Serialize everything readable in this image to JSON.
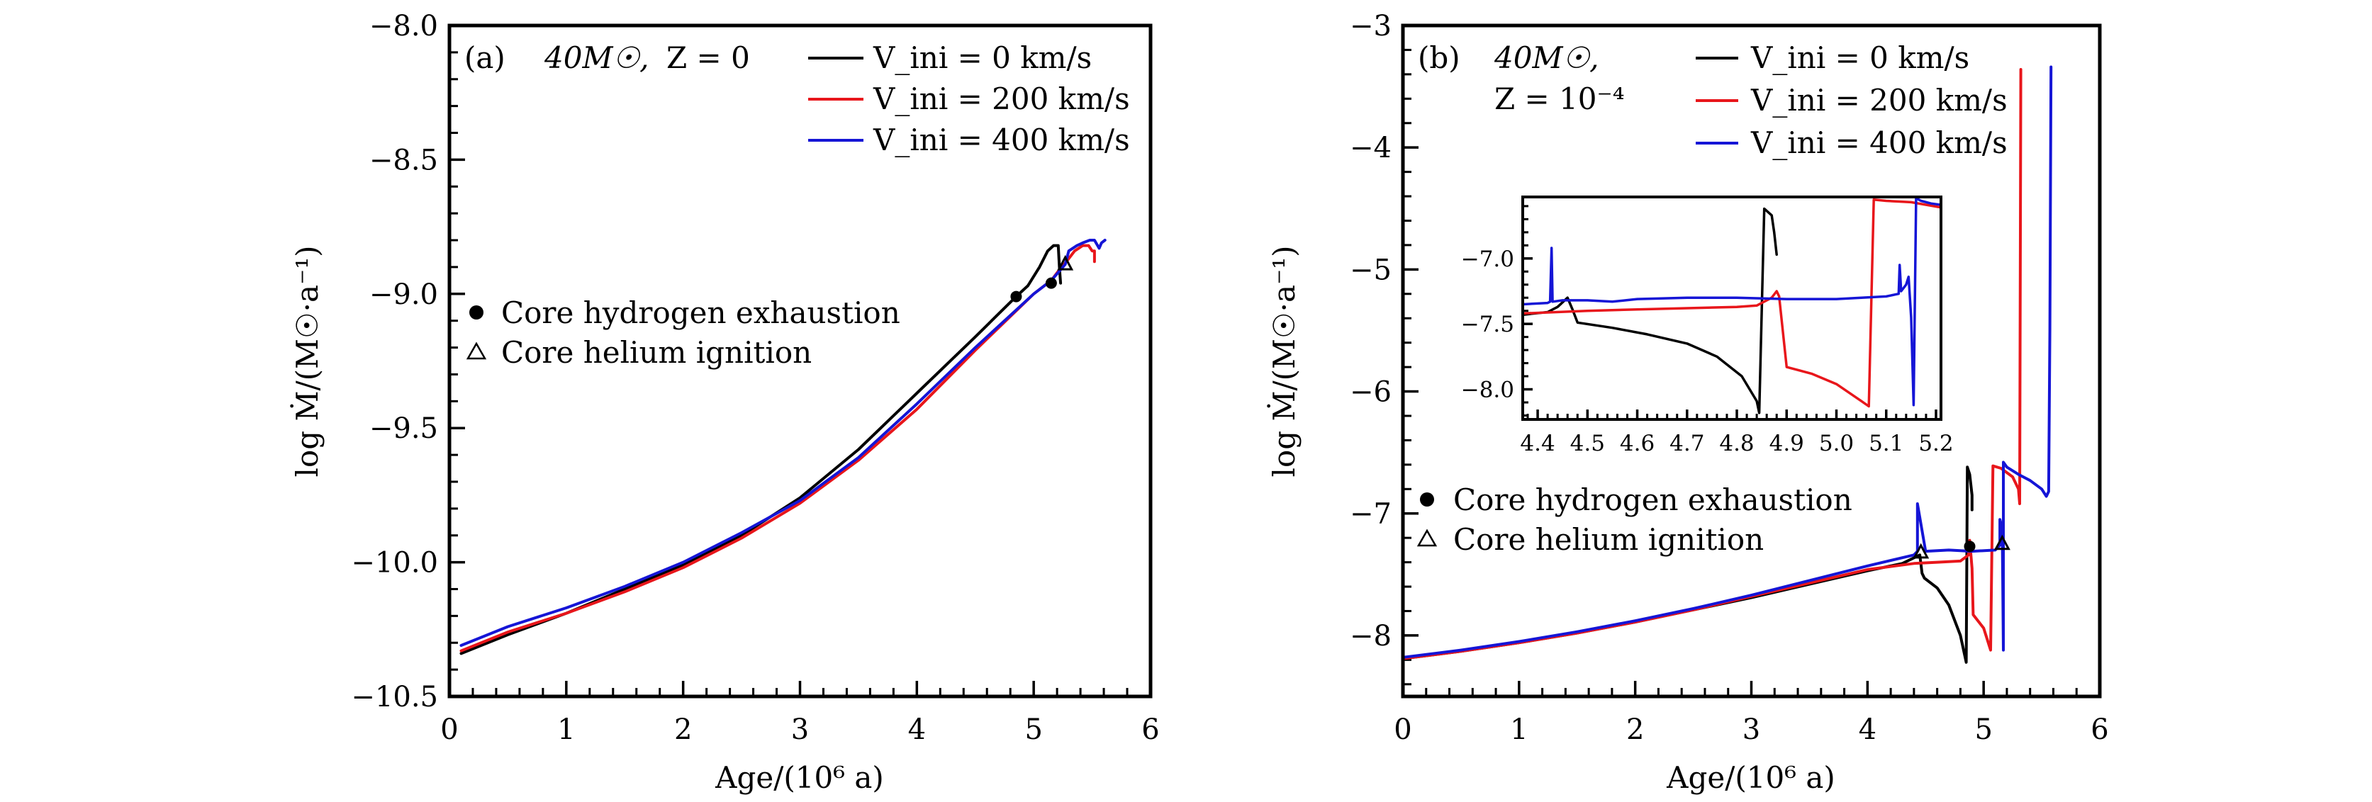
{
  "chart_data": [
    {
      "panel": "(a)",
      "type": "line",
      "annotation": {
        "label": "(a)",
        "mass": "40M☉,",
        "metallicity": "Z = 0"
      },
      "xlabel": "Age/(10⁶ a)",
      "ylabel": "log Ṁ/(M☉·a⁻¹)",
      "xlim": [
        0,
        6
      ],
      "ylim": [
        -10.5,
        -8.0
      ],
      "xticks": [
        0,
        1,
        2,
        3,
        4,
        5,
        6
      ],
      "xtick_labels": [
        "0",
        "1",
        "2",
        "3",
        "4",
        "5",
        "6"
      ],
      "yticks": [
        -10.5,
        -10.0,
        -9.5,
        -9.0,
        -8.5,
        -8.0
      ],
      "ytick_labels": [
        "−10.5",
        "−10.0",
        "−9.5",
        "−9.0",
        "−8.5",
        "−8.0"
      ],
      "x_minor_step": 0.2,
      "y_minor_step": 0.1,
      "legend": {
        "placement": "top-right"
      },
      "marker_legend": {
        "placement": "center-left",
        "items": [
          {
            "symbol": "filled-circle",
            "label": "Core hydrogen exhaustion"
          },
          {
            "symbol": "open-triangle",
            "label": "Core helium ignition"
          }
        ]
      },
      "series": [
        {
          "name": "V_ini = 0 km/s",
          "color": "#000000",
          "x": [
            0.1,
            0.5,
            1.0,
            1.5,
            2.0,
            2.5,
            3.0,
            3.5,
            4.0,
            4.5,
            4.85,
            4.95,
            5.05,
            5.12,
            5.17,
            5.21,
            5.22,
            5.23
          ],
          "y": [
            -10.34,
            -10.27,
            -10.19,
            -10.1,
            -10.01,
            -9.9,
            -9.76,
            -9.58,
            -9.37,
            -9.16,
            -9.01,
            -8.97,
            -8.9,
            -8.84,
            -8.82,
            -8.82,
            -8.9,
            -8.96
          ]
        },
        {
          "name": "V_ini = 200 km/s",
          "color": "#e8161b",
          "x": [
            0.1,
            0.5,
            1.0,
            1.5,
            2.0,
            2.5,
            3.0,
            3.5,
            4.0,
            4.5,
            5.0,
            5.15,
            5.22,
            5.28,
            5.35,
            5.42,
            5.47,
            5.5,
            5.52,
            5.52
          ],
          "y": [
            -10.33,
            -10.26,
            -10.19,
            -10.11,
            -10.02,
            -9.91,
            -9.78,
            -9.62,
            -9.43,
            -9.21,
            -9.0,
            -8.95,
            -8.91,
            -8.88,
            -8.84,
            -8.82,
            -8.82,
            -8.84,
            -8.84,
            -8.88
          ]
        },
        {
          "name": "V_ini = 400 km/s",
          "color": "#1515d6",
          "x": [
            0.1,
            0.5,
            1.0,
            1.5,
            2.0,
            2.5,
            3.0,
            3.5,
            4.0,
            4.5,
            5.0,
            5.15,
            5.27,
            5.3,
            5.37,
            5.42,
            5.48,
            5.52,
            5.56,
            5.58,
            5.61
          ],
          "y": [
            -10.31,
            -10.24,
            -10.17,
            -10.09,
            -10.0,
            -9.89,
            -9.77,
            -9.61,
            -9.41,
            -9.2,
            -9.0,
            -8.95,
            -8.89,
            -8.84,
            -8.82,
            -8.81,
            -8.8,
            -8.8,
            -8.83,
            -8.81,
            -8.8
          ]
        }
      ],
      "markers": [
        {
          "series": "V_ini = 0 km/s",
          "type": "filled-circle",
          "x": 4.85,
          "y": -9.01
        },
        {
          "series": "V_ini = 200 km/s",
          "type": "filled-circle",
          "x": 5.15,
          "y": -8.96
        },
        {
          "series": "V_ini = 400 km/s",
          "type": "open-triangle",
          "x": 5.27,
          "y": -8.89
        }
      ]
    },
    {
      "panel": "(b)",
      "type": "line",
      "annotation": {
        "label": "(b)",
        "mass": "40M☉,",
        "metallicity": "Z = 10⁻⁴"
      },
      "xlabel": "Age/(10⁶ a)",
      "ylabel": "log Ṁ/(M☉·a⁻¹)",
      "xlim": [
        0,
        6
      ],
      "ylim": [
        -8.5,
        -3
      ],
      "xticks": [
        0,
        1,
        2,
        3,
        4,
        5,
        6
      ],
      "xtick_labels": [
        "0",
        "1",
        "2",
        "3",
        "4",
        "5",
        "6"
      ],
      "yticks": [
        -8,
        -7,
        -6,
        -5,
        -4,
        -3
      ],
      "ytick_labels": [
        "−8",
        "−7",
        "−6",
        "−5",
        "−4",
        "−3"
      ],
      "x_minor_step": 0.2,
      "y_minor_step": 0.2,
      "legend": {
        "placement": "top-right"
      },
      "marker_legend": {
        "placement": "center-left",
        "items": [
          {
            "symbol": "filled-circle",
            "label": "Core hydrogen exhaustion"
          },
          {
            "symbol": "open-triangle",
            "label": "Core helium ignition"
          }
        ]
      },
      "series": [
        {
          "name": "V_ini = 0 km/s",
          "color": "#000000",
          "x": [
            0.0,
            0.5,
            1.0,
            1.5,
            2.0,
            2.5,
            3.0,
            3.5,
            4.0,
            4.3,
            4.45,
            4.47,
            4.49,
            4.6,
            4.7,
            4.8,
            4.85,
            4.86,
            4.88,
            4.9,
            4.9
          ],
          "y": [
            -8.19,
            -8.13,
            -8.06,
            -7.98,
            -7.89,
            -7.79,
            -7.69,
            -7.58,
            -7.47,
            -7.41,
            -7.34,
            -7.49,
            -7.53,
            -7.61,
            -7.75,
            -8.0,
            -8.22,
            -6.62,
            -6.68,
            -6.85,
            -6.97
          ]
        },
        {
          "name": "V_ini = 200 km/s",
          "color": "#e8161b",
          "x": [
            0.0,
            0.5,
            1.0,
            1.5,
            2.0,
            2.5,
            3.0,
            3.5,
            4.0,
            4.4,
            4.6,
            4.8,
            4.87,
            4.88,
            4.9,
            4.91,
            5.0,
            5.06,
            5.08,
            5.15,
            5.25,
            5.3,
            5.31,
            5.32,
            5.32
          ],
          "y": [
            -8.19,
            -8.13,
            -8.06,
            -7.98,
            -7.89,
            -7.79,
            -7.68,
            -7.57,
            -7.46,
            -7.41,
            -7.4,
            -7.39,
            -7.34,
            -7.22,
            -7.45,
            -7.83,
            -7.94,
            -8.12,
            -6.61,
            -6.63,
            -6.7,
            -6.8,
            -6.92,
            -3.36,
            -3.36
          ]
        },
        {
          "name": "V_ini = 400 km/s",
          "color": "#1515d6",
          "x": [
            0.0,
            0.5,
            1.0,
            1.5,
            2.0,
            2.5,
            3.0,
            3.5,
            4.0,
            4.4,
            4.43,
            4.43,
            4.5,
            4.7,
            4.9,
            5.1,
            5.14,
            5.14,
            5.16,
            5.17,
            5.17,
            5.2,
            5.3,
            5.4,
            5.5,
            5.54,
            5.56,
            5.57,
            5.58
          ],
          "y": [
            -8.18,
            -8.12,
            -8.05,
            -7.97,
            -7.88,
            -7.78,
            -7.67,
            -7.55,
            -7.43,
            -7.34,
            -7.31,
            -6.92,
            -7.31,
            -7.3,
            -7.31,
            -7.3,
            -7.26,
            -7.05,
            -7.12,
            -8.12,
            -6.58,
            -6.62,
            -6.68,
            -6.73,
            -6.8,
            -6.86,
            -6.82,
            -5.5,
            -3.34
          ]
        }
      ],
      "markers": [
        {
          "series": "V_ini = 0 km/s",
          "type": "open-triangle",
          "x": 4.46,
          "y": -7.32
        },
        {
          "series": "V_ini = 200 km/s",
          "type": "filled-circle",
          "x": 4.88,
          "y": -7.27
        },
        {
          "series": "V_ini = 400 km/s",
          "type": "open-triangle",
          "x": 5.16,
          "y": -7.25
        }
      ],
      "inset": {
        "xlim": [
          4.37,
          5.21
        ],
        "ylim": [
          -8.23,
          -6.53
        ],
        "xticks": [
          4.4,
          4.5,
          4.6,
          4.7,
          4.8,
          4.9,
          5.0,
          5.1,
          5.2
        ],
        "xtick_labels": [
          "4.4",
          "4.5",
          "4.6",
          "4.7",
          "4.8",
          "4.9",
          "5.0",
          "5.1",
          "5.2"
        ],
        "yticks": [
          -8.0,
          -7.5,
          -7.0
        ],
        "ytick_labels": [
          "−8.0",
          "−7.5",
          "−7.0"
        ],
        "x_minor_step": 0.02,
        "y_minor_step": 0.1,
        "series": [
          {
            "name": "V_ini = 0 km/s",
            "color": "#000000",
            "x": [
              4.37,
              4.42,
              4.44,
              4.46,
              4.47,
              4.48,
              4.55,
              4.62,
              4.7,
              4.76,
              4.81,
              4.84,
              4.845,
              4.855,
              4.87,
              4.875,
              4.88
            ],
            "y": [
              -7.43,
              -7.41,
              -7.37,
              -7.3,
              -7.39,
              -7.49,
              -7.53,
              -7.58,
              -7.65,
              -7.75,
              -7.9,
              -8.09,
              -8.18,
              -6.62,
              -6.67,
              -6.8,
              -6.97
            ]
          },
          {
            "name": "V_ini = 200 km/s",
            "color": "#e8161b",
            "x": [
              4.37,
              4.5,
              4.6,
              4.7,
              4.8,
              4.84,
              4.87,
              4.88,
              4.885,
              4.9,
              4.95,
              5.0,
              5.05,
              5.065,
              5.075,
              5.1,
              5.15,
              5.21
            ],
            "y": [
              -7.42,
              -7.4,
              -7.39,
              -7.38,
              -7.37,
              -7.36,
              -7.3,
              -7.25,
              -7.29,
              -7.83,
              -7.88,
              -7.96,
              -8.09,
              -8.13,
              -6.55,
              -6.56,
              -6.57,
              -6.61
            ]
          },
          {
            "name": "V_ini = 400 km/s",
            "color": "#1515d6",
            "x": [
              4.37,
              4.42,
              4.425,
              4.428,
              4.43,
              4.45,
              4.5,
              4.55,
              4.6,
              4.7,
              4.8,
              4.9,
              5.0,
              5.05,
              5.1,
              5.125,
              5.127,
              5.13,
              5.14,
              5.145,
              5.15,
              5.155,
              5.16,
              5.17,
              5.19,
              5.21
            ],
            "y": [
              -7.35,
              -7.34,
              -7.33,
              -6.92,
              -7.33,
              -7.32,
              -7.32,
              -7.33,
              -7.31,
              -7.3,
              -7.3,
              -7.31,
              -7.31,
              -7.3,
              -7.29,
              -7.27,
              -7.05,
              -7.25,
              -7.2,
              -7.14,
              -7.45,
              -8.12,
              -6.54,
              -6.56,
              -6.58,
              -6.59
            ]
          }
        ]
      }
    }
  ]
}
